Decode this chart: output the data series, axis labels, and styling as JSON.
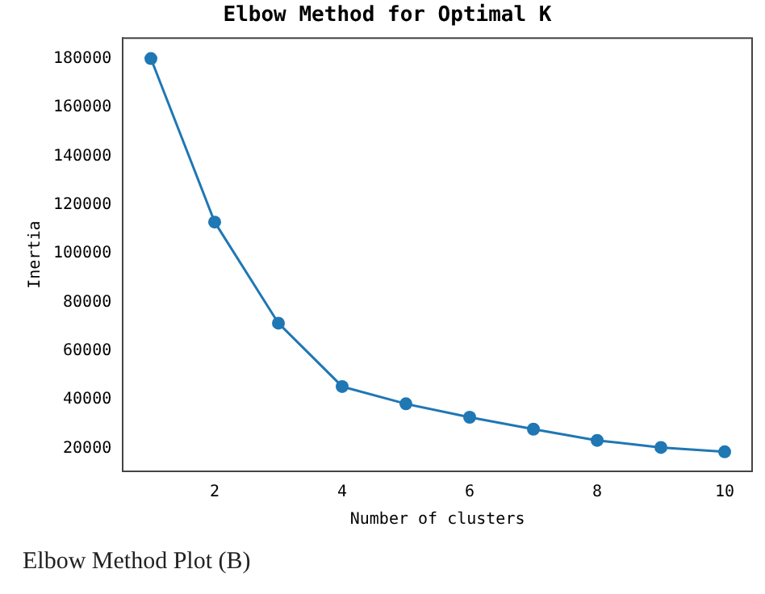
{
  "chart_data": {
    "type": "line",
    "title": "Elbow Method for Optimal K",
    "xlabel": "Number of clusters",
    "ylabel": "Inertia",
    "x": [
      1,
      2,
      3,
      4,
      5,
      6,
      7,
      8,
      9,
      10
    ],
    "series": [
      {
        "color": "#1f77b4",
        "values": [
          180000,
          112900,
          71400,
          45400,
          38300,
          32800,
          27900,
          23300,
          20400,
          18600
        ]
      }
    ],
    "xlim": [
      0.56,
      10.43
    ],
    "xticks": [
      2,
      4,
      6,
      8,
      10
    ],
    "ylim": [
      10600,
      188400
    ],
    "yticks": [
      20000,
      40000,
      60000,
      80000,
      100000,
      120000,
      140000,
      160000,
      180000
    ],
    "marker": "circle",
    "line_style": "solid",
    "grid": false,
    "legend": false,
    "annotations": [
      "Elbow Method Plot (B)"
    ]
  }
}
